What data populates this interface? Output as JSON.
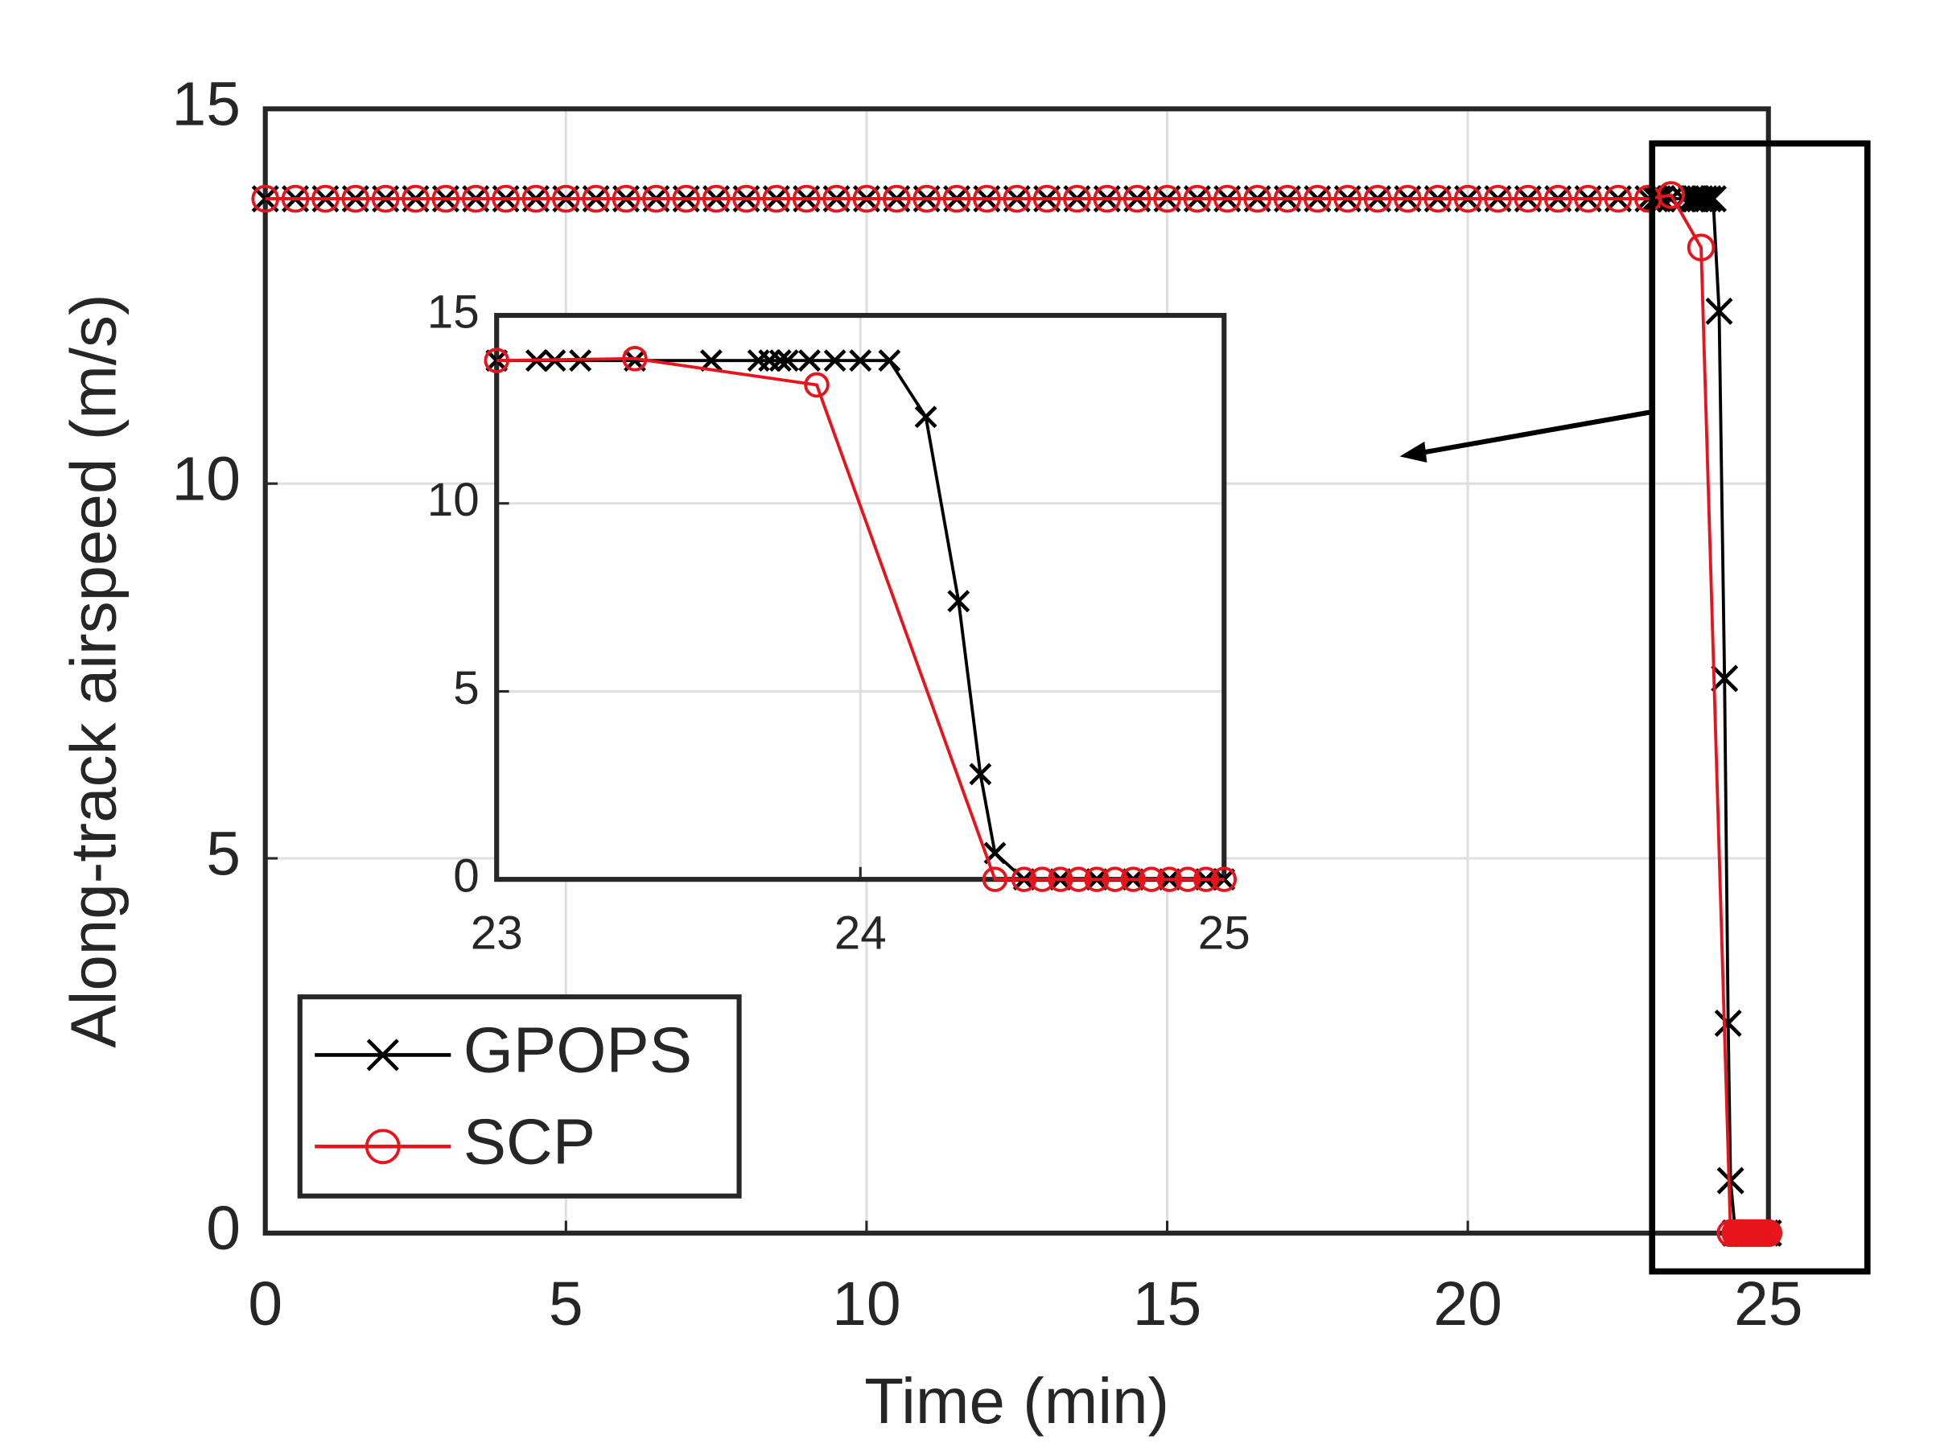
{
  "chart_data": [
    {
      "type": "line",
      "xlabel": "Time (min)",
      "ylabel": "Along-track airspeed (m/s)",
      "xlim": [
        0,
        25
      ],
      "ylim": [
        0,
        15
      ],
      "xticks": [
        0,
        5,
        10,
        15,
        20,
        25
      ],
      "yticks": [
        0,
        5,
        10,
        15
      ],
      "grid": true,
      "legend": "lower left",
      "series": [
        {
          "name": "GPOPS",
          "color": "#000000",
          "marker": "x",
          "x": [
            0,
            0.5,
            1,
            1.5,
            2,
            2.5,
            3,
            3.5,
            4,
            4.5,
            5,
            5.5,
            6,
            6.5,
            7,
            7.5,
            8,
            8.5,
            9,
            9.5,
            10,
            10.5,
            11,
            11.5,
            12,
            12.5,
            13,
            13.5,
            14,
            14.5,
            15,
            15.5,
            16,
            16.5,
            17,
            17.5,
            18,
            18.5,
            19,
            19.5,
            20,
            20.5,
            21,
            21.5,
            22,
            22.5,
            23,
            23.11,
            23.16,
            23.23,
            23.38,
            23.59,
            23.72,
            23.75,
            23.78,
            23.8,
            23.86,
            23.93,
            24,
            24.08,
            24.18,
            24.27,
            24.33,
            24.37,
            24.45,
            24.55,
            24.65,
            24.75,
            24.85,
            24.95,
            25
          ],
          "values": [
            13.8,
            13.8,
            13.8,
            13.8,
            13.8,
            13.8,
            13.8,
            13.8,
            13.8,
            13.8,
            13.8,
            13.8,
            13.8,
            13.8,
            13.8,
            13.8,
            13.8,
            13.8,
            13.8,
            13.8,
            13.8,
            13.8,
            13.8,
            13.8,
            13.8,
            13.8,
            13.8,
            13.8,
            13.8,
            13.8,
            13.8,
            13.8,
            13.8,
            13.8,
            13.8,
            13.8,
            13.8,
            13.8,
            13.8,
            13.8,
            13.8,
            13.8,
            13.8,
            13.8,
            13.8,
            13.8,
            13.8,
            13.8,
            13.8,
            13.8,
            13.8,
            13.8,
            13.8,
            13.8,
            13.8,
            13.8,
            13.8,
            13.8,
            13.8,
            13.8,
            12.3,
            7.4,
            2.8,
            0.7,
            0,
            0,
            0,
            0,
            0,
            0,
            0
          ]
        },
        {
          "name": "SCP",
          "color": "#e8141c",
          "marker": "o",
          "x": [
            0,
            0.5,
            1,
            1.5,
            2,
            2.5,
            3,
            3.5,
            4,
            4.5,
            5,
            5.5,
            6,
            6.5,
            7,
            7.5,
            8,
            8.5,
            9,
            9.5,
            10,
            10.5,
            11,
            11.5,
            12,
            12.5,
            13,
            13.5,
            14,
            14.5,
            15,
            15.5,
            16,
            16.5,
            17,
            17.5,
            18,
            18.5,
            19,
            19.5,
            20,
            20.5,
            21,
            21.5,
            22,
            22.5,
            23,
            23.38,
            23.88,
            24.37,
            24.45,
            24.5,
            24.55,
            24.6,
            24.65,
            24.7,
            24.75,
            24.8,
            24.85,
            24.9,
            24.95,
            25
          ],
          "values": [
            13.8,
            13.8,
            13.8,
            13.8,
            13.8,
            13.8,
            13.8,
            13.8,
            13.8,
            13.8,
            13.8,
            13.8,
            13.8,
            13.8,
            13.8,
            13.8,
            13.8,
            13.8,
            13.8,
            13.8,
            13.8,
            13.8,
            13.8,
            13.8,
            13.8,
            13.8,
            13.8,
            13.8,
            13.8,
            13.8,
            13.8,
            13.8,
            13.8,
            13.8,
            13.8,
            13.8,
            13.8,
            13.8,
            13.8,
            13.8,
            13.8,
            13.8,
            13.8,
            13.8,
            13.8,
            13.8,
            13.8,
            13.85,
            13.15,
            0,
            0,
            0,
            0,
            0,
            0,
            0,
            0,
            0,
            0,
            0,
            0,
            0
          ]
        }
      ]
    },
    {
      "type": "line",
      "xlim": [
        23,
        25
      ],
      "ylim": [
        0,
        15
      ],
      "xticks": [
        23,
        24,
        25
      ],
      "yticks": [
        0,
        5,
        10,
        15
      ],
      "grid": true,
      "series": [
        {
          "color": "#000000",
          "marker": "x",
          "x": [
            23,
            23.11,
            23.16,
            23.23,
            23.38,
            23.59,
            23.72,
            23.75,
            23.78,
            23.8,
            23.86,
            23.93,
            24,
            24.08,
            24.18,
            24.27,
            24.33,
            24.37,
            24.45,
            24.55,
            24.65,
            24.75,
            24.85,
            24.95,
            25
          ],
          "values": [
            13.8,
            13.8,
            13.8,
            13.8,
            13.8,
            13.8,
            13.8,
            13.8,
            13.8,
            13.8,
            13.8,
            13.8,
            13.8,
            13.8,
            12.3,
            7.4,
            2.8,
            0.7,
            0,
            0,
            0,
            0,
            0,
            0,
            0
          ]
        },
        {
          "color": "#e8141c",
          "marker": "o",
          "x": [
            23,
            23.38,
            23.88,
            24.37,
            24.45,
            24.5,
            24.55,
            24.6,
            24.65,
            24.7,
            24.75,
            24.8,
            24.85,
            24.9,
            24.95,
            25
          ],
          "values": [
            13.8,
            13.85,
            13.15,
            0,
            0,
            0,
            0,
            0,
            0,
            0,
            0,
            0,
            0,
            0,
            0,
            0
          ]
        }
      ]
    }
  ]
}
